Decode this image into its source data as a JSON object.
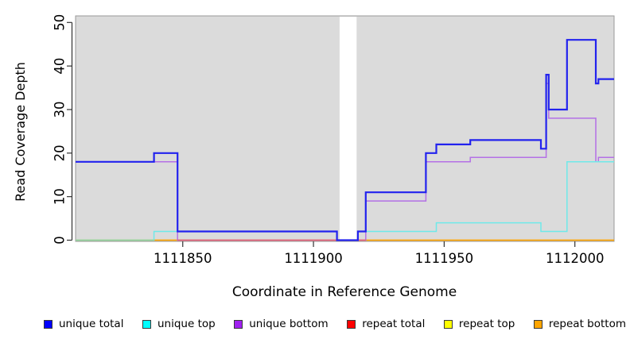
{
  "chart_data": {
    "type": "line",
    "subtype": "step",
    "title": "",
    "xlabel": "Coordinate in Reference Genome",
    "ylabel": "Read Coverage Depth",
    "xlim": [
      1111809,
      1112015
    ],
    "ylim": [
      0,
      50
    ],
    "xticks": [
      1111850,
      1111900,
      1111950,
      1112000
    ],
    "yticks": [
      0,
      10,
      20,
      30,
      40,
      50
    ],
    "plot_bg": "#DBDBDB",
    "plot_border": "#999999",
    "grid": "off",
    "legend_position": "bottom",
    "no_data_band": {
      "x0": 1111910,
      "x1": 1111916.5,
      "color": "#FFFFFF"
    },
    "series": [
      {
        "name": "unique total",
        "legend_color": "#0000FF",
        "line_color": "#2222EE",
        "width": 2.2,
        "steps": [
          [
            1111809,
            18
          ],
          [
            1111839,
            20
          ],
          [
            1111848,
            2
          ],
          [
            1111909,
            0
          ],
          [
            1111917,
            2
          ],
          [
            1111920,
            11
          ],
          [
            1111943,
            20
          ],
          [
            1111947,
            22
          ],
          [
            1111960,
            23
          ],
          [
            1111987,
            21
          ],
          [
            1111989,
            38
          ],
          [
            1111990,
            30
          ],
          [
            1111997,
            46
          ],
          [
            1112008,
            36
          ],
          [
            1112009,
            37
          ],
          [
            1112015,
            37
          ]
        ]
      },
      {
        "name": "unique top",
        "legend_color": "#00FFFF",
        "line_color": "#6FE9E9",
        "width": 1.5,
        "steps": [
          [
            1111809,
            0
          ],
          [
            1111839,
            2
          ],
          [
            1111909,
            0
          ],
          [
            1111917,
            2
          ],
          [
            1111947,
            4
          ],
          [
            1111987,
            2
          ],
          [
            1111997,
            18
          ],
          [
            1112015,
            18
          ]
        ]
      },
      {
        "name": "unique bottom",
        "legend_color": "#A020F0",
        "line_color": "#B470E6",
        "width": 1.5,
        "steps": [
          [
            1111809,
            18
          ],
          [
            1111848,
            0
          ],
          [
            1111920,
            9
          ],
          [
            1111943,
            18
          ],
          [
            1111960,
            19
          ],
          [
            1111989,
            36
          ],
          [
            1111990,
            28
          ],
          [
            1112008,
            18
          ],
          [
            1112009,
            19
          ],
          [
            1112015,
            19
          ]
        ]
      },
      {
        "name": "repeat total",
        "legend_color": "#FF0000",
        "line_color": "#FF2222",
        "width": 1.2,
        "steps": [
          [
            1111809,
            0
          ],
          [
            1112015,
            0
          ]
        ]
      },
      {
        "name": "repeat top",
        "legend_color": "#FFFF00",
        "line_color": "#FFFF00",
        "width": 1.2,
        "steps": [
          [
            1111809,
            0
          ],
          [
            1112015,
            0
          ]
        ]
      },
      {
        "name": "repeat bottom",
        "legend_color": "#FFA500",
        "line_color": "#FFA500",
        "width": 1.5,
        "steps": [
          [
            1111809,
            0
          ],
          [
            1112015,
            0
          ]
        ]
      }
    ],
    "baseline_overlays": [
      {
        "x0": 1111809,
        "x1": 1111839,
        "color": "#95D6A2"
      },
      {
        "x0": 1111848,
        "x1": 1111920,
        "color": "#E4607A"
      }
    ],
    "draw_order": [
      "repeat total",
      "repeat top",
      "repeat bottom",
      "unique bottom",
      "unique top",
      "__overlays__",
      "unique total"
    ]
  }
}
